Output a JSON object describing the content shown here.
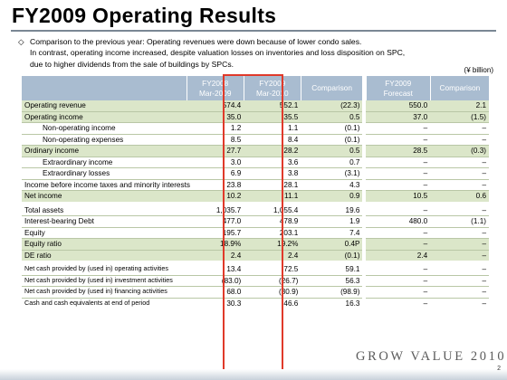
{
  "title": "FY2009 Operating Results",
  "intro": {
    "bullet": "◇",
    "lines": [
      "Comparison to the previous year: Operating revenues were down because of lower condo sales.",
      "In contrast, operating income increased, despite valuation losses on inventories and loss disposition on SPC,",
      "due to higher dividends from the sale of buildings by SPCs."
    ]
  },
  "unit": "(¥ billion)",
  "headers": {
    "c1": [
      "FY2008",
      "Mar-2009"
    ],
    "c2": [
      "FY2009",
      "Mar-2010"
    ],
    "c3": "Comparison",
    "c4": [
      "FY2009",
      "Forecast"
    ],
    "c5": "Comparison"
  },
  "income_rows": [
    {
      "label": "Operating revenue",
      "v": [
        "574.4",
        "552.1",
        "(22.3)",
        "550.0",
        "2.1"
      ]
    },
    {
      "label": "Operating income",
      "v": [
        "35.0",
        "35.5",
        "0.5",
        "37.0",
        "(1.5)"
      ]
    },
    {
      "label": "Non-operating income",
      "v": [
        "1.2",
        "1.1",
        "(0.1)",
        "–",
        "–"
      ]
    },
    {
      "label": "Non-operating expenses",
      "v": [
        "8.5",
        "8.4",
        "(0.1)",
        "–",
        "–"
      ]
    },
    {
      "label": "Ordinary income",
      "v": [
        "27.7",
        "28.2",
        "0.5",
        "28.5",
        "(0.3)"
      ]
    },
    {
      "label": "Extraordinary income",
      "v": [
        "3.0",
        "3.6",
        "0.7",
        "–",
        "–"
      ]
    },
    {
      "label": "Extraordinary losses",
      "v": [
        "6.9",
        "3.8",
        "(3.1)",
        "–",
        "–"
      ]
    },
    {
      "label": "Income before income taxes and minority interests",
      "v": [
        "23.8",
        "28.1",
        "4.3",
        "–",
        "–"
      ]
    },
    {
      "label": "Net income",
      "v": [
        "10.2",
        "11.1",
        "0.9",
        "10.5",
        "0.6"
      ]
    }
  ],
  "balance_rows": [
    {
      "label": "Total assets",
      "v": [
        "1,035.7",
        "1,055.4",
        "19.6",
        "–",
        "–"
      ]
    },
    {
      "label": "Interest-bearing Debt",
      "v": [
        "477.0",
        "478.9",
        "1.9",
        "480.0",
        "(1.1)"
      ]
    },
    {
      "label": "Equity",
      "v": [
        "195.7",
        "203.1",
        "7.4",
        "–",
        "–"
      ]
    },
    {
      "label": "Equity ratio",
      "v": [
        "18.9%",
        "19.2%",
        "0.4P",
        "–",
        "–"
      ]
    },
    {
      "label": "DE ratio",
      "v": [
        "2.4",
        "2.4",
        "(0.1)",
        "2.4",
        "–"
      ]
    }
  ],
  "cash_rows": [
    {
      "label": "Net cash provided by (used in) operating activities",
      "v": [
        "13.4",
        "72.5",
        "59.1",
        "–",
        "–"
      ]
    },
    {
      "label": "Net cash provided by (used in) investment activities",
      "v": [
        "(83.0)",
        "(26.7)",
        "56.3",
        "–",
        "–"
      ]
    },
    {
      "label": "Net cash provided by (used in) financing activities",
      "v": [
        "68.0",
        "(30.9)",
        "(98.9)",
        "–",
        "–"
      ]
    },
    {
      "label": "Cash and cash equivalents at end of period",
      "v": [
        "30.3",
        "46.6",
        "16.3",
        "–",
        "–"
      ]
    }
  ],
  "footer": {
    "logo_text": "GROW VALUE 2010",
    "page_number": "2"
  },
  "colors": {
    "header_bg": "#a9bcd0",
    "shaded_row": "#dbe6c9",
    "highlight": "#e03a2a"
  }
}
